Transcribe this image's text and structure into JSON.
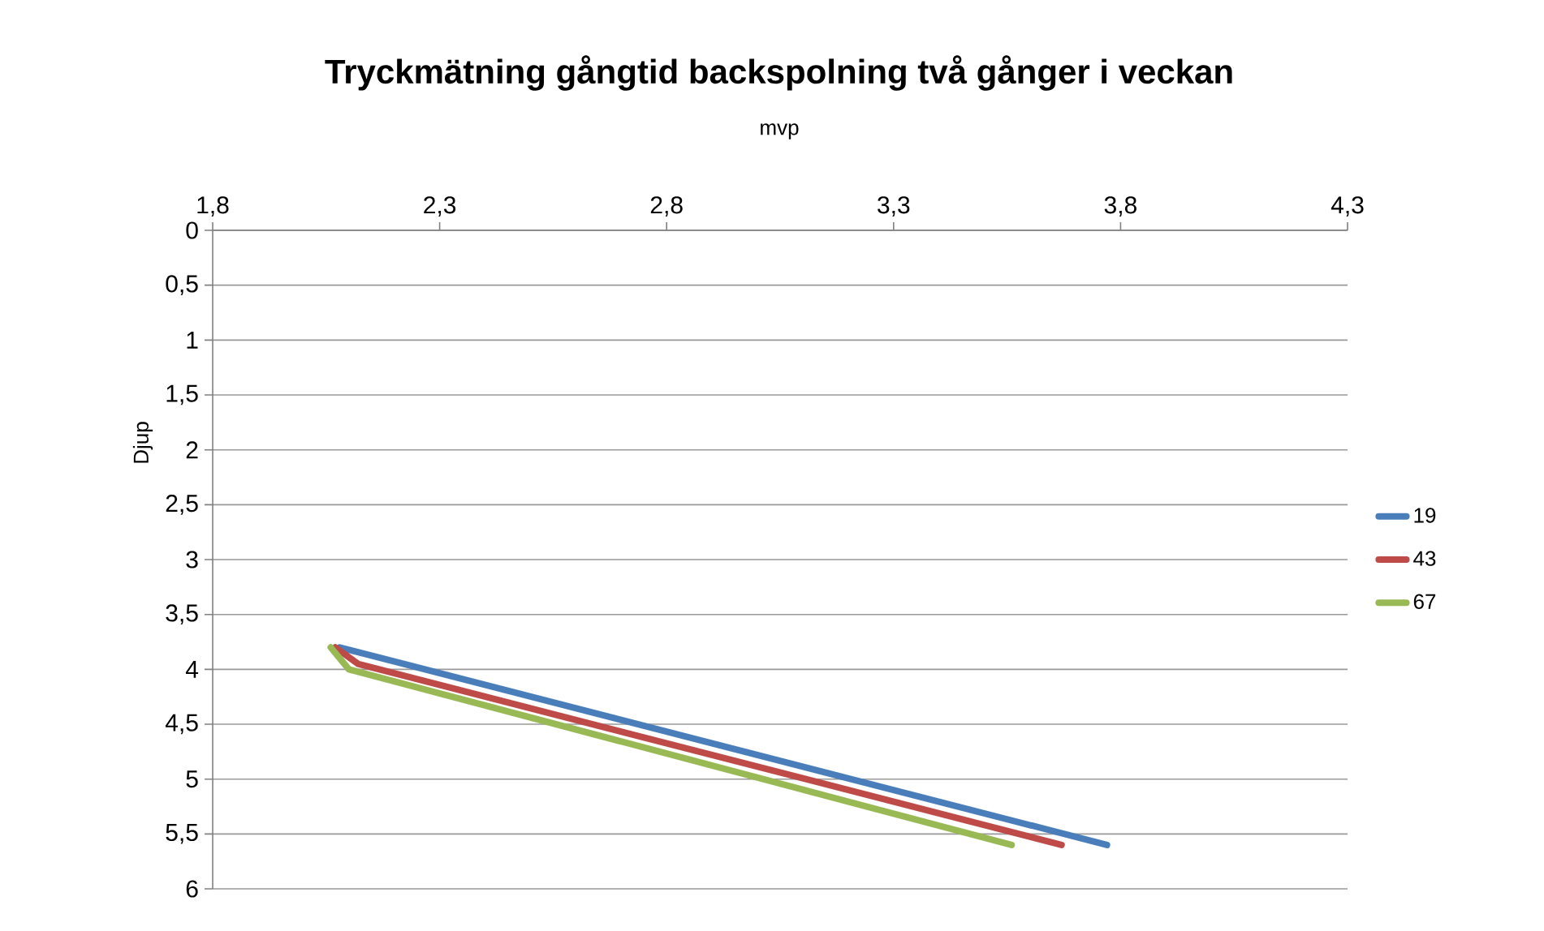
{
  "chart_data": {
    "type": "line",
    "title": "Tryckmätning gångtid backspolning två gånger i veckan",
    "xlabel": "mvp",
    "ylabel": "Djup",
    "series": [
      {
        "name": "19",
        "color": "#4a7ebb",
        "x": [
          2.08,
          3.77
        ],
        "values": [
          3.8,
          5.6
        ]
      },
      {
        "name": "43",
        "color": "#be4b48",
        "x": [
          2.07,
          2.12,
          3.67
        ],
        "values": [
          3.8,
          3.95,
          5.6
        ]
      },
      {
        "name": "67",
        "color": "#98b954",
        "x": [
          2.06,
          2.1,
          3.56
        ],
        "values": [
          3.8,
          4.0,
          5.6
        ]
      }
    ],
    "xlim": [
      1.8,
      4.3
    ],
    "ylim": [
      6,
      0
    ],
    "xticks": [
      {
        "value": 1.8,
        "label": "1,8"
      },
      {
        "value": 2.3,
        "label": "2,3"
      },
      {
        "value": 2.8,
        "label": "2,8"
      },
      {
        "value": 3.3,
        "label": "3,3"
      },
      {
        "value": 3.8,
        "label": "3,8"
      },
      {
        "value": 4.3,
        "label": "4,3"
      }
    ],
    "yticks": [
      0,
      {
        "value": 0.5,
        "label": "0,5"
      },
      1,
      {
        "value": 1.5,
        "label": "1,5"
      },
      2,
      {
        "value": 2.5,
        "label": "2,5"
      },
      3,
      {
        "value": 3.5,
        "label": "3,5"
      },
      4,
      {
        "value": 4.5,
        "label": "4,5"
      },
      5,
      {
        "value": 5.5,
        "label": "5,5"
      },
      6
    ],
    "grid": "y",
    "legend": "right",
    "marker": "none",
    "line_style": "solid"
  }
}
